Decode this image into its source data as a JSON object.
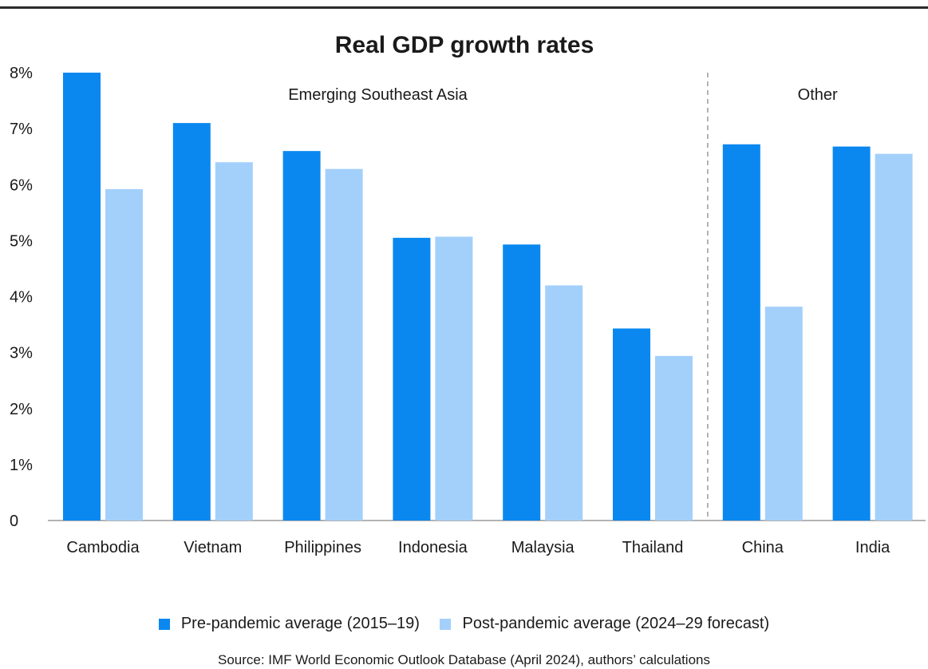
{
  "chart_data": {
    "type": "bar",
    "title": "Real GDP growth rates",
    "xlabel": "",
    "ylabel": "",
    "ylim": [
      0,
      8
    ],
    "y_ticks": [
      "0",
      "1%",
      "2%",
      "3%",
      "4%",
      "5%",
      "6%",
      "7%",
      "8%"
    ],
    "categories": [
      "Cambodia",
      "Vietnam",
      "Philippines",
      "Indonesia",
      "Malaysia",
      "Thailand",
      "China",
      "India"
    ],
    "series": [
      {
        "name": "Pre-pandemic average (2015–19)",
        "color": "#0a88f0",
        "values": [
          8.0,
          7.1,
          6.6,
          5.05,
          4.93,
          3.43,
          6.72,
          6.68
        ]
      },
      {
        "name": "Post-pandemic average (2024–29 forecast)",
        "color": "#a3d0fb",
        "values": [
          5.92,
          6.4,
          6.28,
          5.07,
          4.2,
          2.94,
          3.82,
          6.55
        ]
      }
    ],
    "groups": [
      {
        "label": "Emerging Southeast Asia",
        "categories": [
          "Cambodia",
          "Vietnam",
          "Philippines",
          "Indonesia",
          "Malaysia",
          "Thailand"
        ]
      },
      {
        "label": "Other",
        "categories": [
          "China",
          "India"
        ]
      }
    ],
    "grid": false,
    "legend_position": "bottom"
  },
  "source": "Source: IMF World Economic Outlook Database (April 2024), authors’ calculations"
}
